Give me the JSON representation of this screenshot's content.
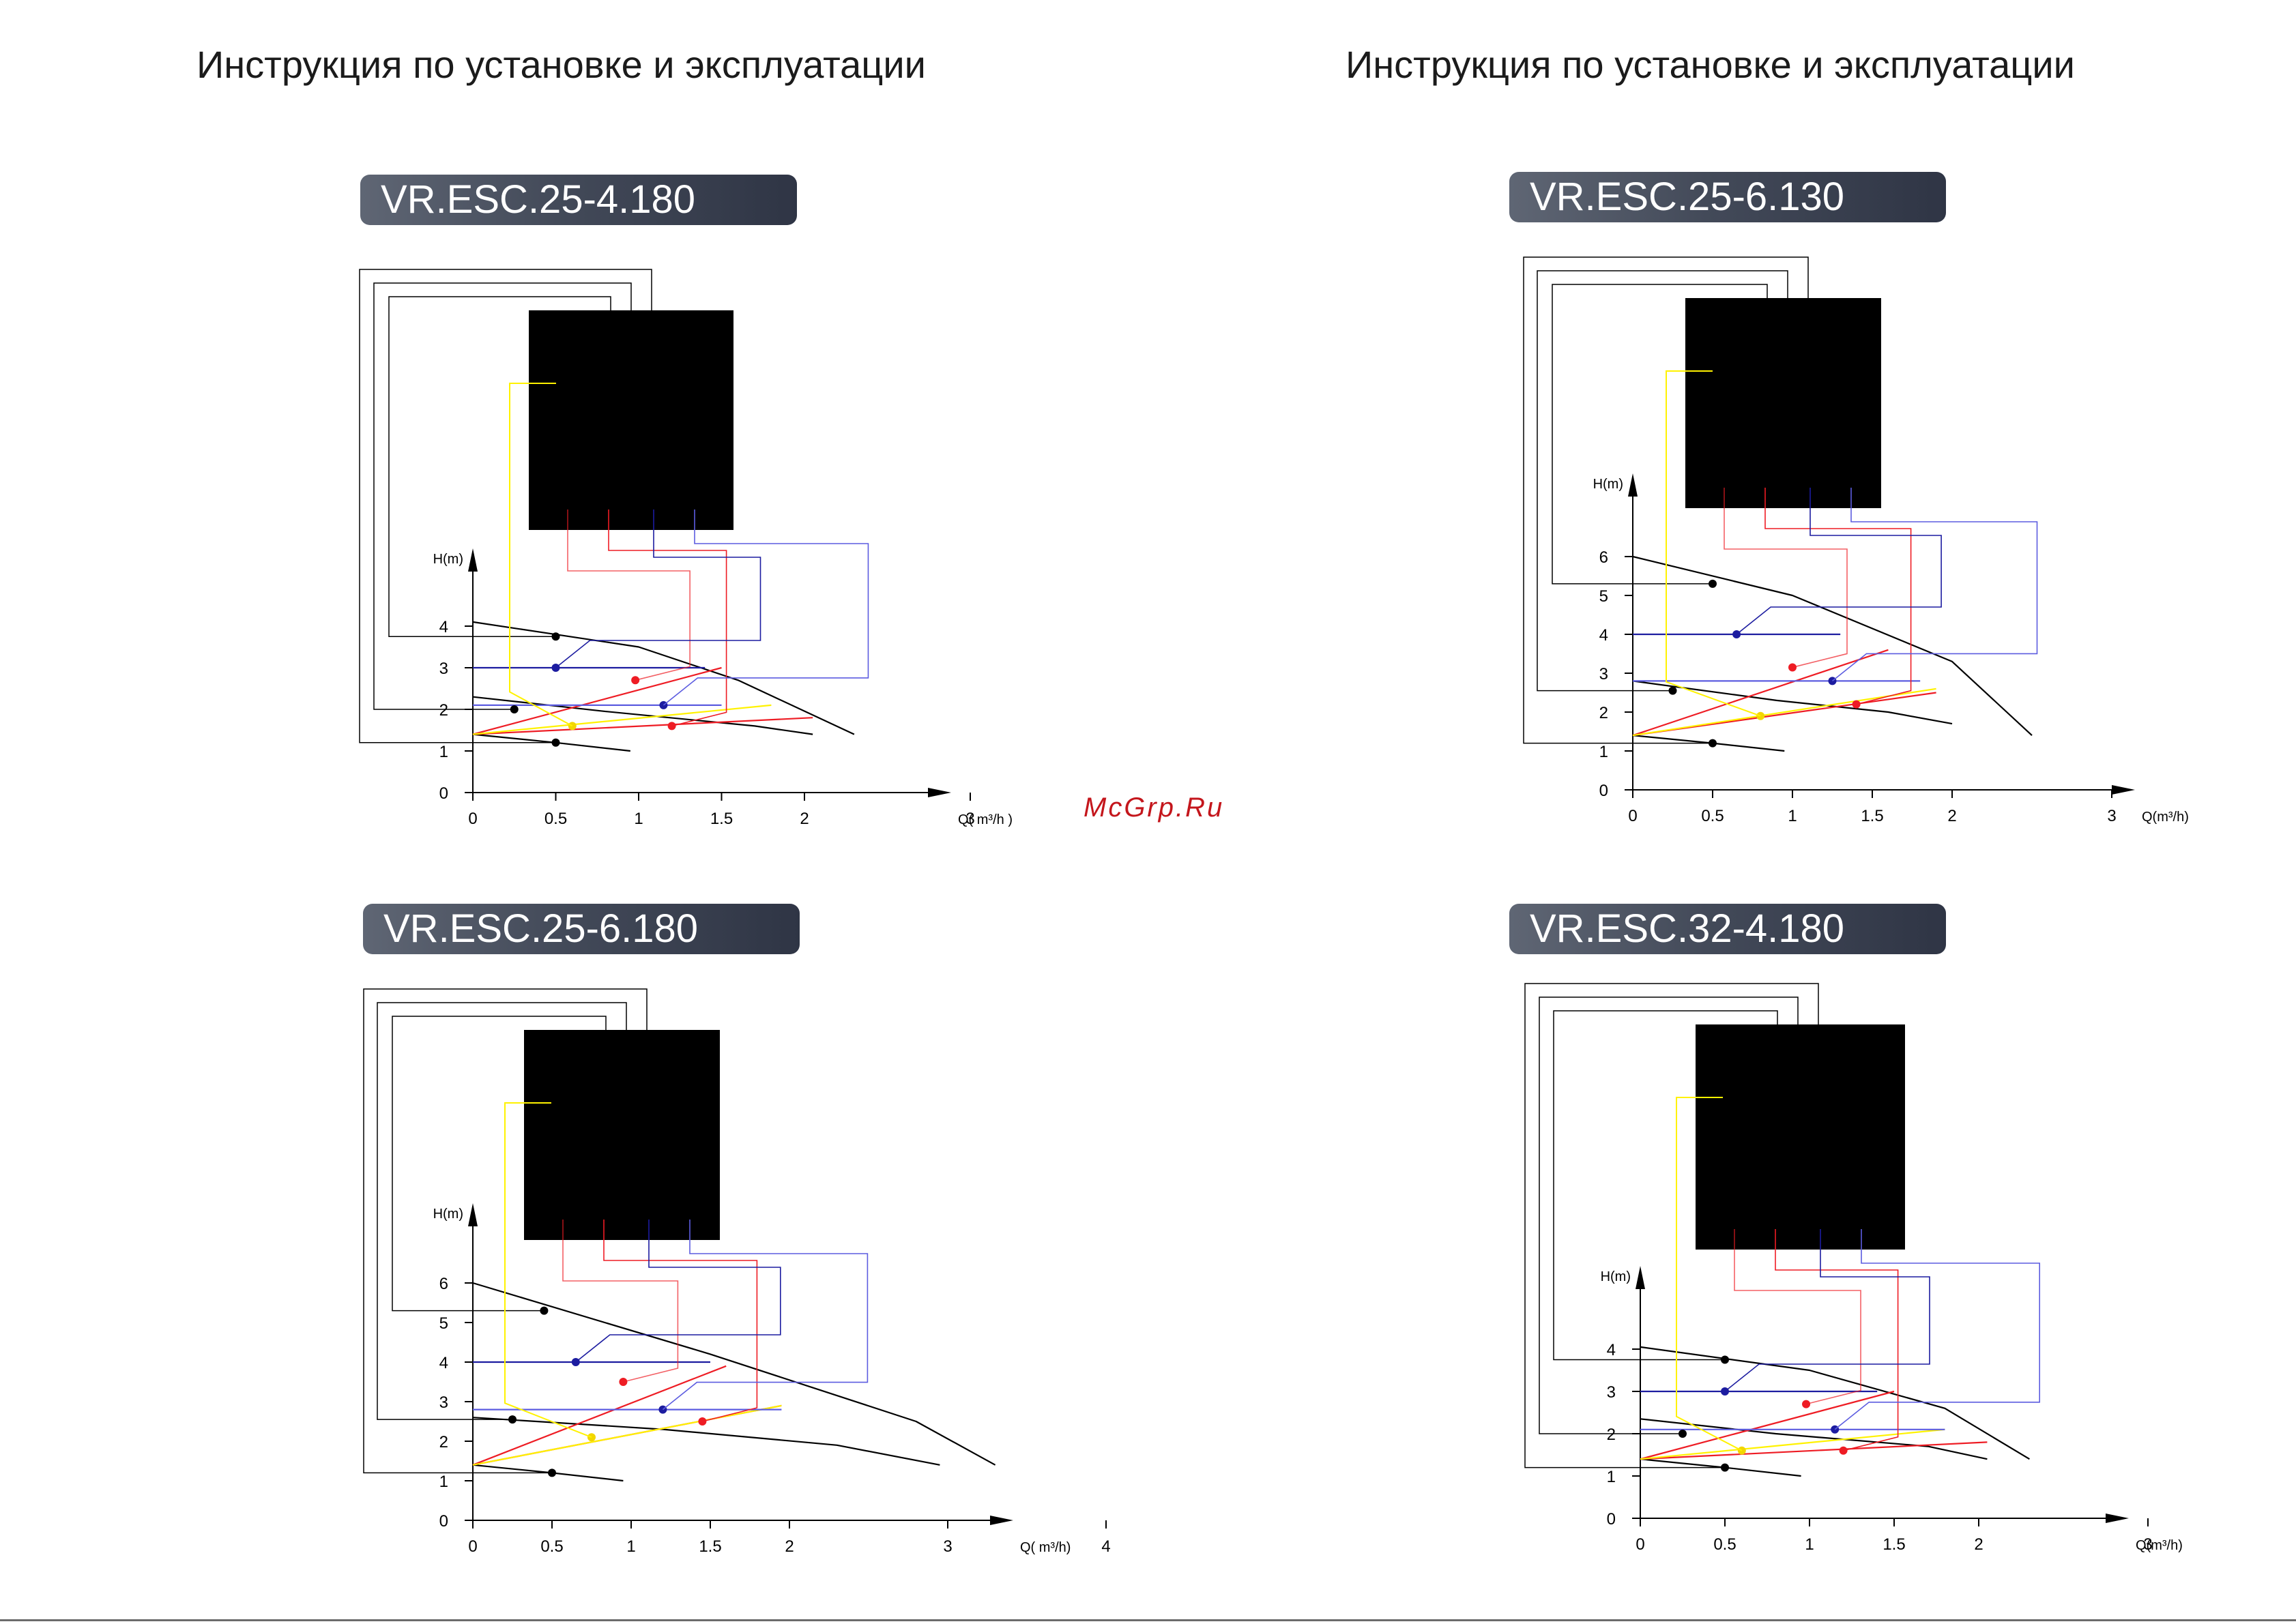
{
  "page": {
    "header_left": "Инструкция по установке и эксплуатации",
    "header_right": "Инструкция по установке и эксплуатации",
    "watermark": "McGrp.Ru"
  },
  "chart_data": [
    {
      "type": "line",
      "title": "VR.ESC.25-4.180",
      "xlabel": "Q( m³/h )",
      "ylabel": "H(m)",
      "xlim": [
        0,
        3
      ],
      "ylim": [
        0,
        4
      ],
      "x_ticks": [
        "0",
        "0.5",
        "1",
        "1.5",
        "2",
        "3"
      ],
      "y_ticks": [
        "0",
        "1",
        "2",
        "3",
        "4"
      ],
      "series": [
        {
          "color": "#000000",
          "kind": "curve",
          "points": [
            [
              0,
              4.1
            ],
            [
              1.0,
              3.5
            ],
            [
              1.6,
              2.7
            ],
            [
              2.3,
              1.4
            ]
          ]
        },
        {
          "color": "#000000",
          "kind": "curve",
          "points": [
            [
              0,
              2.3
            ],
            [
              0.8,
              1.95
            ],
            [
              1.7,
              1.6
            ],
            [
              2.05,
              1.4
            ]
          ]
        },
        {
          "color": "#000000",
          "kind": "curve",
          "points": [
            [
              0,
              1.4
            ],
            [
              0.5,
              1.2
            ],
            [
              0.95,
              1.0
            ]
          ]
        },
        {
          "color": "#ee1c24",
          "kind": "line",
          "points": [
            [
              0,
              1.4
            ],
            [
              1.5,
              3.0
            ]
          ]
        },
        {
          "color": "#ee1c24",
          "kind": "line",
          "points": [
            [
              0,
              1.4
            ],
            [
              2.05,
              1.8
            ]
          ]
        },
        {
          "color": "#fff200",
          "kind": "line",
          "points": [
            [
              0,
              1.4
            ],
            [
              1.8,
              2.1
            ]
          ]
        },
        {
          "color": "#1c1ca0",
          "kind": "line",
          "points": [
            [
              0,
              3.0
            ],
            [
              1.4,
              3.0
            ]
          ]
        },
        {
          "color": "#5c5ce0",
          "kind": "line",
          "points": [
            [
              0,
              2.1
            ],
            [
              1.5,
              2.1
            ]
          ]
        }
      ],
      "markers": [
        {
          "color": "#000000",
          "x": 0.5,
          "y": 3.75
        },
        {
          "color": "#000000",
          "x": 0.25,
          "y": 2.0
        },
        {
          "color": "#000000",
          "x": 0.5,
          "y": 1.2
        },
        {
          "color": "#1c1ca0",
          "x": 0.5,
          "y": 3.0
        },
        {
          "color": "#1c1ca0",
          "x": 1.15,
          "y": 2.1
        },
        {
          "color": "#ee1c24",
          "x": 0.98,
          "y": 2.7
        },
        {
          "color": "#ee1c24",
          "x": 1.2,
          "y": 1.6
        },
        {
          "color": "#fff200",
          "x": 0.6,
          "y": 1.6
        }
      ]
    },
    {
      "type": "line",
      "title": "VR.ESC.25-6.130",
      "xlabel": "Q(m³/h)",
      "ylabel": "H(m)",
      "xlim": [
        0,
        3
      ],
      "ylim": [
        0,
        6
      ],
      "x_ticks": [
        "0",
        "0.5",
        "1",
        "1.5",
        "2",
        "3"
      ],
      "y_ticks": [
        "0",
        "1",
        "2",
        "3",
        "4",
        "5",
        "6"
      ],
      "series": [
        {
          "color": "#000000",
          "kind": "curve",
          "points": [
            [
              0,
              6.0
            ],
            [
              1.0,
              5.0
            ],
            [
              2.0,
              3.3
            ],
            [
              2.5,
              1.4
            ]
          ]
        },
        {
          "color": "#000000",
          "kind": "curve",
          "points": [
            [
              0,
              2.8
            ],
            [
              0.9,
              2.3
            ],
            [
              1.6,
              2.0
            ],
            [
              2.0,
              1.7
            ]
          ]
        },
        {
          "color": "#000000",
          "kind": "curve",
          "points": [
            [
              0,
              1.4
            ],
            [
              0.5,
              1.2
            ],
            [
              0.95,
              1.0
            ]
          ]
        },
        {
          "color": "#ee1c24",
          "kind": "line",
          "points": [
            [
              0,
              1.4
            ],
            [
              1.6,
              3.6
            ]
          ]
        },
        {
          "color": "#ee1c24",
          "kind": "line",
          "points": [
            [
              0,
              1.4
            ],
            [
              1.9,
              2.5
            ]
          ]
        },
        {
          "color": "#fff200",
          "kind": "line",
          "points": [
            [
              0,
              1.4
            ],
            [
              1.9,
              2.6
            ]
          ]
        },
        {
          "color": "#1c1ca0",
          "kind": "line",
          "points": [
            [
              0,
              4.0
            ],
            [
              1.3,
              4.0
            ]
          ]
        },
        {
          "color": "#5c5ce0",
          "kind": "line",
          "points": [
            [
              0,
              2.8
            ],
            [
              1.8,
              2.8
            ]
          ]
        }
      ],
      "markers": [
        {
          "color": "#000000",
          "x": 0.5,
          "y": 5.3
        },
        {
          "color": "#000000",
          "x": 0.25,
          "y": 2.55
        },
        {
          "color": "#000000",
          "x": 0.5,
          "y": 1.2
        },
        {
          "color": "#1c1ca0",
          "x": 0.65,
          "y": 4.0
        },
        {
          "color": "#1c1ca0",
          "x": 1.25,
          "y": 2.8
        },
        {
          "color": "#ee1c24",
          "x": 1.0,
          "y": 3.15
        },
        {
          "color": "#ee1c24",
          "x": 1.4,
          "y": 2.2
        },
        {
          "color": "#fff200",
          "x": 0.8,
          "y": 1.9
        }
      ]
    },
    {
      "type": "line",
      "title": "VR.ESC.25-6.180",
      "xlabel": "Q( m³/h)",
      "ylabel": "H(m)",
      "xlim": [
        0,
        4
      ],
      "ylim": [
        0,
        6
      ],
      "x_ticks": [
        "0",
        "0.5",
        "1",
        "1.5",
        "2",
        "3",
        "4"
      ],
      "y_ticks": [
        "0",
        "1",
        "2",
        "3",
        "4",
        "5",
        "6"
      ],
      "series": [
        {
          "color": "#000000",
          "kind": "curve",
          "points": [
            [
              0,
              6.0
            ],
            [
              1.5,
              4.2
            ],
            [
              2.8,
              2.5
            ],
            [
              3.3,
              1.4
            ]
          ]
        },
        {
          "color": "#000000",
          "kind": "curve",
          "points": [
            [
              0,
              2.6
            ],
            [
              1.2,
              2.3
            ],
            [
              2.3,
              1.9
            ],
            [
              2.95,
              1.4
            ]
          ]
        },
        {
          "color": "#000000",
          "kind": "curve",
          "points": [
            [
              0,
              1.4
            ],
            [
              0.5,
              1.2
            ],
            [
              0.95,
              1.0
            ]
          ]
        },
        {
          "color": "#ee1c24",
          "kind": "line",
          "points": [
            [
              0,
              1.4
            ],
            [
              1.6,
              3.9
            ]
          ]
        },
        {
          "color": "#ee1c24",
          "kind": "line",
          "points": [
            [
              0,
              1.4
            ],
            [
              1.95,
              2.9
            ]
          ]
        },
        {
          "color": "#fff200",
          "kind": "line",
          "points": [
            [
              0,
              1.4
            ],
            [
              1.95,
              2.9
            ]
          ]
        },
        {
          "color": "#1c1ca0",
          "kind": "line",
          "points": [
            [
              0,
              4.0
            ],
            [
              1.5,
              4.0
            ]
          ]
        },
        {
          "color": "#5c5ce0",
          "kind": "line",
          "points": [
            [
              0,
              2.8
            ],
            [
              1.95,
              2.8
            ]
          ]
        }
      ],
      "markers": [
        {
          "color": "#000000",
          "x": 0.45,
          "y": 5.3
        },
        {
          "color": "#000000",
          "x": 0.25,
          "y": 2.55
        },
        {
          "color": "#000000",
          "x": 0.5,
          "y": 1.2
        },
        {
          "color": "#1c1ca0",
          "x": 0.65,
          "y": 4.0
        },
        {
          "color": "#1c1ca0",
          "x": 1.2,
          "y": 2.8
        },
        {
          "color": "#ee1c24",
          "x": 0.95,
          "y": 3.5
        },
        {
          "color": "#ee1c24",
          "x": 1.45,
          "y": 2.5
        },
        {
          "color": "#fff200",
          "x": 0.75,
          "y": 2.1
        }
      ]
    },
    {
      "type": "line",
      "title": "VR.ESC.32-4.180",
      "xlabel": "Q(m³/h)",
      "ylabel": "H(m)",
      "xlim": [
        0,
        3
      ],
      "ylim": [
        0,
        4
      ],
      "x_ticks": [
        "0",
        "0.5",
        "1",
        "1.5",
        "2",
        "3"
      ],
      "y_ticks": [
        "0",
        "1",
        "2",
        "3",
        "4"
      ],
      "series": [
        {
          "color": "#000000",
          "kind": "curve",
          "points": [
            [
              0,
              4.05
            ],
            [
              1.0,
              3.5
            ],
            [
              1.8,
              2.6
            ],
            [
              2.3,
              1.4
            ]
          ]
        },
        {
          "color": "#000000",
          "kind": "curve",
          "points": [
            [
              0,
              2.35
            ],
            [
              0.8,
              2.0
            ],
            [
              1.7,
              1.7
            ],
            [
              2.05,
              1.4
            ]
          ]
        },
        {
          "color": "#000000",
          "kind": "curve",
          "points": [
            [
              0,
              1.4
            ],
            [
              0.5,
              1.2
            ],
            [
              0.95,
              1.0
            ]
          ]
        },
        {
          "color": "#ee1c24",
          "kind": "line",
          "points": [
            [
              0,
              1.4
            ],
            [
              1.5,
              3.0
            ]
          ]
        },
        {
          "color": "#ee1c24",
          "kind": "line",
          "points": [
            [
              0,
              1.4
            ],
            [
              2.05,
              1.8
            ]
          ]
        },
        {
          "color": "#fff200",
          "kind": "line",
          "points": [
            [
              0,
              1.4
            ],
            [
              1.8,
              2.1
            ]
          ]
        },
        {
          "color": "#1c1ca0",
          "kind": "line",
          "points": [
            [
              0,
              3.0
            ],
            [
              1.4,
              3.0
            ]
          ]
        },
        {
          "color": "#5c5ce0",
          "kind": "line",
          "points": [
            [
              0,
              2.1
            ],
            [
              1.8,
              2.1
            ]
          ]
        }
      ],
      "markers": [
        {
          "color": "#000000",
          "x": 0.5,
          "y": 3.75
        },
        {
          "color": "#000000",
          "x": 0.25,
          "y": 2.0
        },
        {
          "color": "#000000",
          "x": 0.5,
          "y": 1.2
        },
        {
          "color": "#1c1ca0",
          "x": 0.5,
          "y": 3.0
        },
        {
          "color": "#1c1ca0",
          "x": 1.15,
          "y": 2.1
        },
        {
          "color": "#ee1c24",
          "x": 0.98,
          "y": 2.7
        },
        {
          "color": "#ee1c24",
          "x": 1.2,
          "y": 1.6
        },
        {
          "color": "#fff200",
          "x": 0.6,
          "y": 1.6
        }
      ]
    }
  ]
}
